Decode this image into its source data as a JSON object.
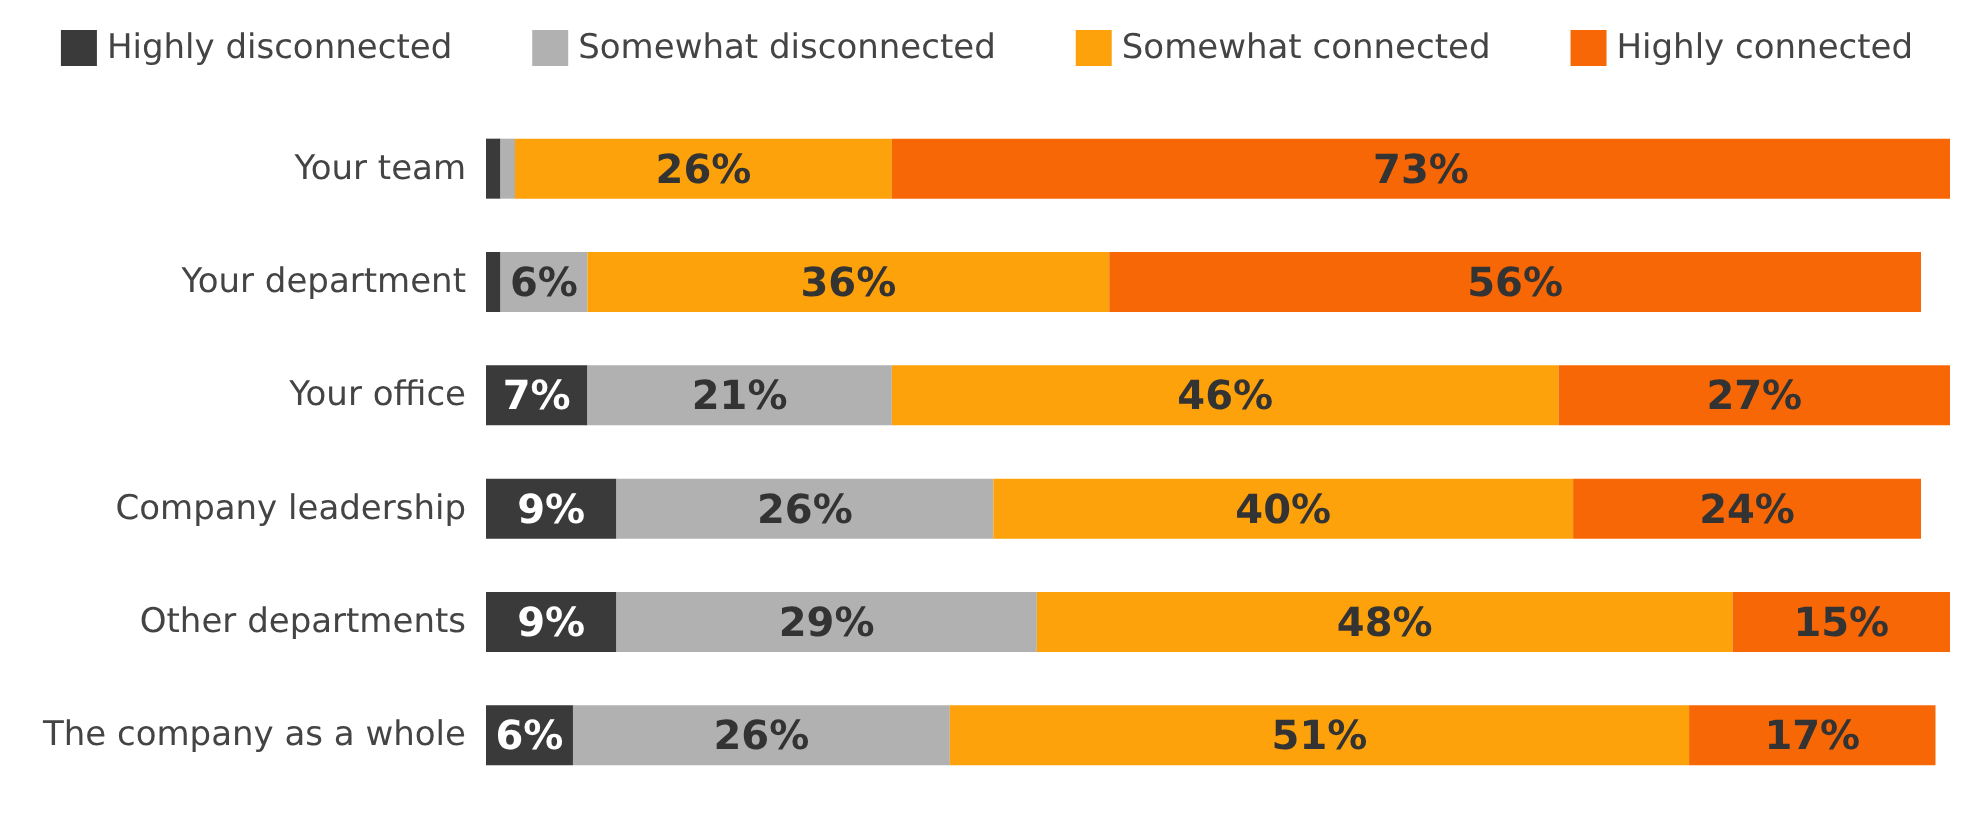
{
  "chart_data": {
    "type": "bar",
    "orientation": "horizontal",
    "stacked": true,
    "legend": "top",
    "categories": [
      "Your team",
      "Your department",
      "Your office",
      "Company leadership",
      "Other departments",
      "The company as a whole"
    ],
    "series": [
      {
        "name": "Highly disconnected",
        "color": "#3a3a3a",
        "values": [
          1,
          1,
          7,
          9,
          9,
          6
        ],
        "value_labels": [
          null,
          null,
          "7%",
          "9%",
          "9%",
          "6%"
        ]
      },
      {
        "name": "Somewhat disconnected",
        "color": "#b1b1b1",
        "values": [
          1,
          6,
          21,
          26,
          29,
          26
        ],
        "value_labels": [
          null,
          "6%",
          "21%",
          "26%",
          "29%",
          "26%"
        ]
      },
      {
        "name": "Somewhat connected",
        "color": "#fda20b",
        "values": [
          26,
          36,
          46,
          40,
          48,
          51
        ],
        "value_labels": [
          "26%",
          "36%",
          "46%",
          "40%",
          "48%",
          "51%"
        ]
      },
      {
        "name": "Highly connected",
        "color": "#f76706",
        "values": [
          73,
          56,
          27,
          24,
          15,
          17
        ],
        "value_labels": [
          "73%",
          "56%",
          "27%",
          "24%",
          "15%",
          "17%"
        ]
      }
    ]
  }
}
